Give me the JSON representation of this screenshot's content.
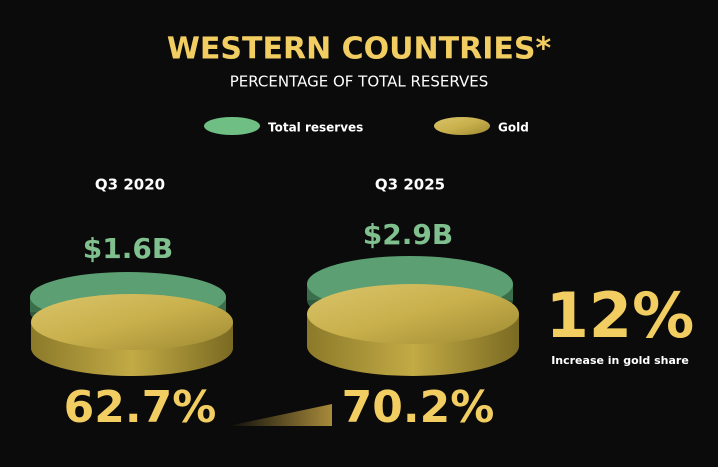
{
  "header": {
    "title": "WESTERN COUNTRIES*",
    "subtitle": "PERCENTAGE OF TOTAL RESERVES"
  },
  "legend": [
    "Total reserves",
    "Gold"
  ],
  "panels": [
    {
      "period": "Q3 2020",
      "total": "$1.6B",
      "gold_share": "62.7%"
    },
    {
      "period": "Q3 2025",
      "total": "$2.9B",
      "gold_share": "70.2%"
    }
  ],
  "change": {
    "value": "12%",
    "label": "Increase in gold share"
  }
}
